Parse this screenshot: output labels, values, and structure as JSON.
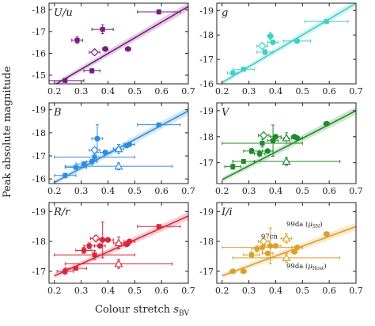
{
  "figure": {
    "ylabel": "Peak absolute magnitude",
    "xlabel_main": "Colour stretch ",
    "xlabel_sym": "s",
    "xlabel_sub": "BV",
    "x_ticks": [
      "0.2",
      "0.3",
      "0.4",
      "0.5",
      "0.6",
      "0.7"
    ]
  },
  "chart_data": [
    {
      "type": "scatter",
      "title": "U/u",
      "color": "#7b1a80",
      "xlim": [
        0.18,
        0.7
      ],
      "ylim": [
        -14.6,
        -18.3
      ],
      "y_ticks": [
        -15,
        -16,
        -17,
        -18
      ],
      "fit": {
        "x": [
          0.2,
          0.7
        ],
        "y": [
          -14.55,
          -18.15
        ]
      },
      "points": [
        {
          "x": 0.24,
          "y": -14.75,
          "marker": "square",
          "xerr": 0.07,
          "yerr": 0.08
        },
        {
          "x": 0.285,
          "y": -16.6,
          "marker": "square",
          "xerr": 0.02,
          "yerr": 0.15
        },
        {
          "x": 0.34,
          "y": -15.2,
          "marker": "square",
          "xerr": 0.03,
          "yerr": 0.1
        },
        {
          "x": 0.35,
          "y": -16.05,
          "marker": "diamond_open",
          "xerr": 0.02,
          "yerr": 0.1
        },
        {
          "x": 0.38,
          "y": -17.1,
          "marker": "square",
          "xerr": 0.04,
          "yerr": 0.2
        },
        {
          "x": 0.39,
          "y": -16.2,
          "marker": "circle",
          "xerr": 0.01,
          "yerr": 0.1
        },
        {
          "x": 0.475,
          "y": -16.2,
          "marker": "circle",
          "xerr": 0.01,
          "yerr": 0.05
        },
        {
          "x": 0.59,
          "y": -17.9,
          "marker": "square",
          "xerr": 0.08,
          "yerr": 0.1
        }
      ]
    },
    {
      "type": "scatter",
      "title": "g",
      "color": "#3fcfc4",
      "xlim": [
        0.18,
        0.7
      ],
      "ylim": [
        -16.0,
        -19.3
      ],
      "y_ticks": [
        -16,
        -17,
        -18,
        -19
      ],
      "fit": {
        "x": [
          0.2,
          0.7
        ],
        "y": [
          -16.05,
          -19.3
        ]
      },
      "points": [
        {
          "x": 0.24,
          "y": -16.45,
          "marker": "square",
          "xerr": 0.02,
          "yerr": 0.08
        },
        {
          "x": 0.28,
          "y": -16.6,
          "marker": "square",
          "xerr": 0.04,
          "yerr": 0.05
        },
        {
          "x": 0.35,
          "y": -17.55,
          "marker": "diamond_open",
          "xerr": 0.02,
          "yerr": 0.1
        },
        {
          "x": 0.36,
          "y": -17.3,
          "marker": "square",
          "xerr": 0.03,
          "yerr": 0.1
        },
        {
          "x": 0.38,
          "y": -17.95,
          "marker": "circle",
          "xerr": 0.01,
          "yerr": 0.15
        },
        {
          "x": 0.39,
          "y": -17.7,
          "marker": "circle",
          "xerr": 0.02,
          "yerr": 0.05
        },
        {
          "x": 0.48,
          "y": -17.75,
          "marker": "circle",
          "xerr": 0.05,
          "yerr": 0.05
        },
        {
          "x": 0.59,
          "y": -18.55,
          "marker": "square",
          "xerr": 0.08,
          "yerr": 0.05
        }
      ]
    },
    {
      "type": "scatter",
      "title": "B",
      "color": "#2f8de0",
      "xlim": [
        0.18,
        0.7
      ],
      "ylim": [
        -15.8,
        -19.3
      ],
      "y_ticks": [
        -16,
        -17,
        -18,
        -19
      ],
      "fit": {
        "x": [
          0.2,
          0.7
        ],
        "y": [
          -15.85,
          -18.95
        ]
      },
      "points": [
        {
          "x": 0.24,
          "y": -16.15,
          "marker": "square",
          "xerr": 0.04,
          "yerr": 0.1
        },
        {
          "x": 0.28,
          "y": -16.5,
          "marker": "square",
          "xerr": 0.04,
          "yerr": 0.05
        },
        {
          "x": 0.31,
          "y": -16.65,
          "marker": "square",
          "xerr": 0.03,
          "yerr": 0.1
        },
        {
          "x": 0.34,
          "y": -16.75,
          "marker": "square",
          "xerr": 0.02,
          "yerr": 0.1
        },
        {
          "x": 0.35,
          "y": -17.25,
          "marker": "diamond_open",
          "xerr": 0.02,
          "yerr": 0.1
        },
        {
          "x": 0.35,
          "y": -16.95,
          "marker": "square",
          "xerr": 0.15,
          "yerr": 0.15
        },
        {
          "x": 0.36,
          "y": -17.75,
          "marker": "circle",
          "xerr": 0.02,
          "yerr": 0.6
        },
        {
          "x": 0.39,
          "y": -17.15,
          "marker": "circle",
          "xerr": 0.02,
          "yerr": 0.05
        },
        {
          "x": 0.44,
          "y": -17.3,
          "marker": "triangle_open",
          "xerr": 0.02,
          "yerr": 0.2
        },
        {
          "x": 0.44,
          "y": -16.55,
          "marker": "triangle_open",
          "xerr": 0.2,
          "yerr": 0.15
        },
        {
          "x": 0.47,
          "y": -17.45,
          "marker": "circle",
          "xerr": 0.01,
          "yerr": 0.05
        },
        {
          "x": 0.48,
          "y": -17.5,
          "marker": "circle",
          "xerr": 0.02,
          "yerr": 0.05
        },
        {
          "x": 0.59,
          "y": -18.35,
          "marker": "square",
          "xerr": 0.08,
          "yerr": 0.05
        }
      ]
    },
    {
      "type": "scatter",
      "title": "V",
      "color": "#1f8a2a",
      "xlim": [
        0.18,
        0.7
      ],
      "ylim": [
        -16.2,
        -19.3
      ],
      "y_ticks": [
        -17,
        -18,
        -19
      ],
      "fit": {
        "x": [
          0.2,
          0.7
        ],
        "y": [
          -16.35,
          -19.0
        ]
      },
      "points": [
        {
          "x": 0.24,
          "y": -16.85,
          "marker": "square",
          "xerr": 0.03,
          "yerr": 0.1
        },
        {
          "x": 0.28,
          "y": -17.05,
          "marker": "square",
          "xerr": 0.04,
          "yerr": 0.05
        },
        {
          "x": 0.31,
          "y": -17.45,
          "marker": "square",
          "xerr": 0.03,
          "yerr": 0.1
        },
        {
          "x": 0.34,
          "y": -17.35,
          "marker": "square",
          "xerr": 0.02,
          "yerr": 0.1
        },
        {
          "x": 0.35,
          "y": -17.75,
          "marker": "square",
          "xerr": 0.15,
          "yerr": 0.15
        },
        {
          "x": 0.355,
          "y": -18.05,
          "marker": "diamond_open",
          "xerr": 0.02,
          "yerr": 0.1
        },
        {
          "x": 0.37,
          "y": -17.45,
          "marker": "circle",
          "xerr": 0.02,
          "yerr": 0.05
        },
        {
          "x": 0.39,
          "y": -17.85,
          "marker": "circle",
          "xerr": 0.02,
          "yerr": 0.6
        },
        {
          "x": 0.4,
          "y": -18.0,
          "marker": "circle",
          "xerr": 0.02,
          "yerr": 0.05
        },
        {
          "x": 0.44,
          "y": -17.95,
          "marker": "triangle_open",
          "xerr": 0.02,
          "yerr": 0.2
        },
        {
          "x": 0.44,
          "y": -17.05,
          "marker": "triangle_open",
          "xerr": 0.2,
          "yerr": 0.15
        },
        {
          "x": 0.47,
          "y": -18.0,
          "marker": "circle",
          "xerr": 0.01,
          "yerr": 0.05
        },
        {
          "x": 0.48,
          "y": -17.95,
          "marker": "circle",
          "xerr": 0.02,
          "yerr": 0.05
        },
        {
          "x": 0.59,
          "y": -18.5,
          "marker": "circle",
          "xerr": 0.01,
          "yerr": 0.05
        }
      ]
    },
    {
      "type": "scatter",
      "title": "R/r",
      "color": "#d8263a",
      "xlim": [
        0.18,
        0.7
      ],
      "ylim": [
        -16.6,
        -19.3
      ],
      "y_ticks": [
        -17,
        -18,
        -19
      ],
      "fit": {
        "x": [
          0.2,
          0.7
        ],
        "y": [
          -16.85,
          -18.85
        ]
      },
      "points": [
        {
          "x": 0.24,
          "y": -17.0,
          "marker": "square",
          "xerr": 0.03,
          "yerr": 0.1
        },
        {
          "x": 0.28,
          "y": -17.1,
          "marker": "square",
          "xerr": 0.04,
          "yerr": 0.05
        },
        {
          "x": 0.31,
          "y": -17.7,
          "marker": "square",
          "xerr": 0.03,
          "yerr": 0.1
        },
        {
          "x": 0.33,
          "y": -17.85,
          "marker": "square",
          "xerr": 0.02,
          "yerr": 0.1
        },
        {
          "x": 0.35,
          "y": -17.55,
          "marker": "square",
          "xerr": 0.15,
          "yerr": 0.15
        },
        {
          "x": 0.355,
          "y": -18.1,
          "marker": "diamond_open",
          "xerr": 0.02,
          "yerr": 0.1
        },
        {
          "x": 0.37,
          "y": -17.85,
          "marker": "circle",
          "xerr": 0.02,
          "yerr": 0.05
        },
        {
          "x": 0.38,
          "y": -18.05,
          "marker": "circle",
          "xerr": 0.02,
          "yerr": 0.6
        },
        {
          "x": 0.4,
          "y": -18.05,
          "marker": "circle",
          "xerr": 0.02,
          "yerr": 0.05
        },
        {
          "x": 0.44,
          "y": -17.95,
          "marker": "triangle_open",
          "xerr": 0.02,
          "yerr": 0.2
        },
        {
          "x": 0.44,
          "y": -17.25,
          "marker": "triangle_open",
          "xerr": 0.2,
          "yerr": 0.15
        },
        {
          "x": 0.47,
          "y": -17.9,
          "marker": "circle",
          "xerr": 0.01,
          "yerr": 0.05
        },
        {
          "x": 0.48,
          "y": -18.0,
          "marker": "circle",
          "xerr": 0.02,
          "yerr": 0.05
        },
        {
          "x": 0.59,
          "y": -18.5,
          "marker": "square",
          "xerr": 0.08,
          "yerr": 0.05
        }
      ]
    },
    {
      "type": "scatter",
      "title": "I/i",
      "color": "#d9a12a",
      "xlim": [
        0.18,
        0.7
      ],
      "ylim": [
        -16.6,
        -19.3
      ],
      "y_ticks": [
        -17,
        -18,
        -19
      ],
      "fit": {
        "x": [
          0.2,
          0.7
        ],
        "y": [
          -16.85,
          -18.5
        ]
      },
      "annotations": [
        {
          "text": "97cn",
          "x": 0.345,
          "y": -18.1
        },
        {
          "text": "99da (",
          "sym": "μ",
          "sub": "SN",
          "tail": ")",
          "x": 0.44,
          "y": -18.5
        },
        {
          "text": "99da (",
          "sym": "μ",
          "sub": "Host",
          "tail": ")",
          "x": 0.44,
          "y": -17.1
        }
      ],
      "points": [
        {
          "x": 0.24,
          "y": -17.0,
          "marker": "circle",
          "xerr": 0.01,
          "yerr": 0.05
        },
        {
          "x": 0.28,
          "y": -17.0,
          "marker": "circle",
          "xerr": 0.01,
          "yerr": 0.05
        },
        {
          "x": 0.31,
          "y": -17.55,
          "marker": "square",
          "xerr": 0.03,
          "yerr": 0.1
        },
        {
          "x": 0.33,
          "y": -17.75,
          "marker": "square",
          "xerr": 0.02,
          "yerr": 0.1
        },
        {
          "x": 0.35,
          "y": -17.8,
          "marker": "square",
          "xerr": 0.15,
          "yerr": 0.15
        },
        {
          "x": 0.355,
          "y": -18.0,
          "marker": "diamond_open",
          "xerr": 0.02,
          "yerr": 0.1
        },
        {
          "x": 0.37,
          "y": -17.6,
          "marker": "circle",
          "xerr": 0.02,
          "yerr": 0.05
        },
        {
          "x": 0.38,
          "y": -17.85,
          "marker": "circle",
          "xerr": 0.02,
          "yerr": 0.6
        },
        {
          "x": 0.4,
          "y": -17.85,
          "marker": "circle",
          "xerr": 0.02,
          "yerr": 0.05
        },
        {
          "x": 0.44,
          "y": -18.1,
          "marker": "triangle_open",
          "xerr": 0.02,
          "yerr": 0.15
        },
        {
          "x": 0.44,
          "y": -17.45,
          "marker": "triangle_open",
          "xerr": 0.2,
          "yerr": 0.15
        },
        {
          "x": 0.47,
          "y": -17.65,
          "marker": "circle",
          "xerr": 0.01,
          "yerr": 0.05
        },
        {
          "x": 0.48,
          "y": -17.8,
          "marker": "circle",
          "xerr": 0.02,
          "yerr": 0.05
        },
        {
          "x": 0.59,
          "y": -18.25,
          "marker": "circle",
          "xerr": 0.01,
          "yerr": 0.05
        }
      ]
    }
  ]
}
